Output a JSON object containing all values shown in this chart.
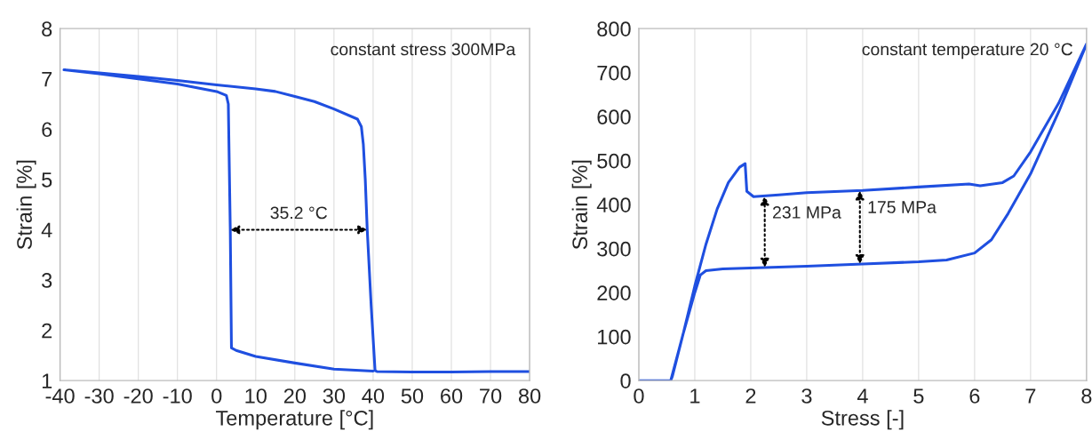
{
  "chart_data": [
    {
      "type": "line",
      "xlabel": "Temperature [°C]",
      "ylabel": "Strain [%]",
      "xlim": [
        -40,
        80
      ],
      "xticks": [
        -40,
        -30,
        -20,
        -10,
        0,
        10,
        20,
        30,
        40,
        50,
        60,
        70,
        80
      ],
      "ylim": [
        1,
        8
      ],
      "yticks": [
        1,
        2,
        3,
        4,
        5,
        6,
        7,
        8
      ],
      "grid": "x",
      "series": [
        {
          "color": "#1f4fe0",
          "x": [
            80,
            70,
            60,
            50,
            41,
            40.5,
            39.5,
            38.5,
            38,
            37.5,
            37,
            36,
            30,
            25,
            20,
            15,
            10,
            0,
            -10,
            -20,
            -30,
            -39,
            -30,
            -20,
            -10,
            0,
            2.5,
            3,
            3.5,
            3.8,
            5,
            10,
            20,
            30,
            40
          ],
          "values": [
            1.18,
            1.18,
            1.17,
            1.17,
            1.18,
            1.2,
            2.5,
            4.0,
            5.0,
            5.7,
            6.05,
            6.2,
            6.4,
            6.55,
            6.65,
            6.75,
            6.8,
            6.88,
            6.97,
            7.05,
            7.12,
            7.18,
            7.1,
            7.0,
            6.9,
            6.75,
            6.67,
            6.5,
            4.0,
            1.65,
            1.6,
            1.48,
            1.35,
            1.23,
            1.19
          ]
        }
      ],
      "annotations": [
        "constant stress 300MPa",
        {
          "text": "35.2 °C",
          "x": 38.5,
          "y": 4.0
        }
      ]
    },
    {
      "type": "line",
      "xlabel": "Stress [-]",
      "ylabel": "Strain [%]",
      "xlim": [
        0,
        8
      ],
      "xticks": [
        0,
        1,
        2,
        3,
        4,
        5,
        6,
        7,
        8
      ],
      "ylim": [
        0,
        800
      ],
      "yticks": [
        0,
        100,
        200,
        300,
        400,
        500,
        600,
        700,
        800
      ],
      "grid": "x",
      "series": [
        {
          "color": "#1f4fe0",
          "x": [
            0,
            0.57,
            0.8,
            1.0,
            1.2,
            1.4,
            1.6,
            1.8,
            1.9,
            1.93,
            2.05,
            2.5,
            3,
            4,
            5,
            5.9,
            6.1,
            6.5,
            6.7,
            7,
            7.5,
            8,
            7.5,
            7,
            6.6,
            6.3,
            6,
            5.5,
            5,
            4,
            3,
            2,
            1.5,
            1.2,
            1.1,
            1.0,
            0.8,
            0.6,
            0.57
          ],
          "values": [
            0,
            0,
            110,
            215,
            310,
            390,
            450,
            485,
            493,
            430,
            418,
            422,
            427,
            432,
            440,
            447,
            443,
            450,
            465,
            520,
            630,
            765,
            610,
            470,
            380,
            320,
            290,
            274,
            270,
            265,
            260,
            256,
            254,
            250,
            240,
            200,
            110,
            10,
            0
          ]
        }
      ],
      "annotations": [
        "constant temperature 20 °C",
        {
          "text": "231 MPa",
          "x": 2.25,
          "y": 420
        },
        {
          "text": "175 MPa",
          "x": 3.95,
          "y": 432
        }
      ]
    }
  ]
}
